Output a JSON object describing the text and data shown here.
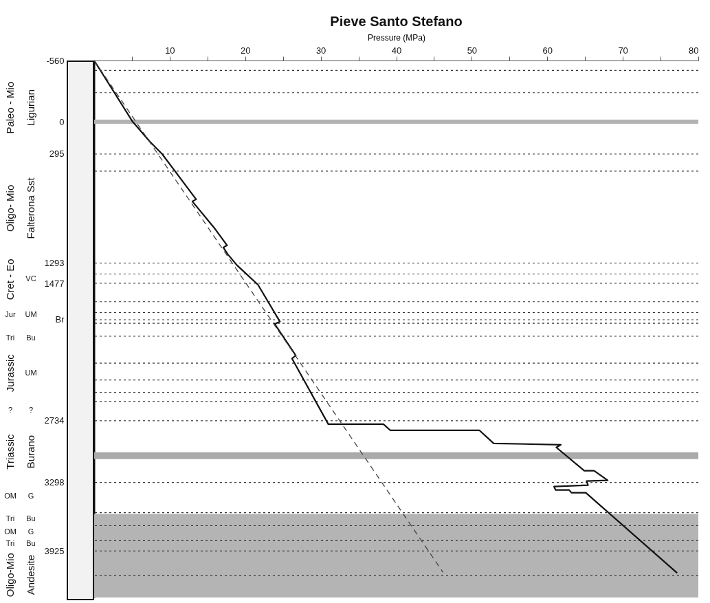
{
  "chart_data": {
    "type": "line",
    "title": "Pieve Santo Stefano",
    "xlabel": "Pressure (MPa)",
    "xlim": [
      0,
      80
    ],
    "xticks": [
      {
        "value": 5,
        "label": null
      },
      10,
      {
        "value": 15,
        "label": null
      },
      20,
      {
        "value": 25,
        "label": null
      },
      30,
      {
        "value": 35,
        "label": null
      },
      40,
      {
        "value": 45,
        "label": null
      },
      50,
      {
        "value": 55,
        "label": null
      },
      60,
      {
        "value": 65,
        "label": null
      },
      70,
      {
        "value": 75,
        "label": null
      },
      80
    ],
    "ylim": [
      4350,
      -560
    ],
    "yticks": [
      -560,
      0,
      295,
      1293,
      1477,
      {
        "value": 1810,
        "label": "Br"
      },
      2734,
      3298,
      3925
    ],
    "series": [
      {
        "color": "#111111",
        "line_style": "solid",
        "x": [
          0,
          5.1,
          7.4,
          9.0,
          13.5,
          13.0,
          16.0,
          17.6,
          17.1,
          17.7,
          18.9,
          21.7,
          24.6,
          23.9,
          26.7,
          26.2,
          31.0,
          38.3,
          39.2,
          51.0,
          52.9,
          61.8,
          61.2,
          64.9,
          66.2,
          68.0,
          65.2,
          65.4,
          60.9,
          61.1,
          62.9,
          63.2,
          65.1,
          77.2
        ],
        "values": [
          -560,
          0,
          184,
          295,
          709,
          728,
          979,
          1130,
          1149,
          1212,
          1311,
          1491,
          1828,
          1849,
          2137,
          2165,
          2765,
          2765,
          2821,
          2821,
          2941,
          2953,
          2978,
          3191,
          3191,
          3279,
          3285,
          3323,
          3336,
          3367,
          3367,
          3392,
          3392,
          4126
        ]
      },
      {
        "color": "#444444",
        "line_style": "dashed",
        "x": [
          0,
          46.2
        ],
        "values": [
          -560,
          4120
        ]
      }
    ],
    "ref_lines": [
      {
        "axis": "y",
        "value": 0,
        "color": "#b3b3b3",
        "line_style": "solid"
      },
      {
        "axis": "y",
        "value": -469,
        "color": "#333333",
        "line_style": "dotted"
      },
      {
        "axis": "y",
        "value": -266,
        "color": "#333333",
        "line_style": "dotted"
      },
      {
        "axis": "y",
        "value": 295,
        "color": "#333333",
        "line_style": "dotted"
      },
      {
        "axis": "y",
        "value": 452,
        "color": "#333333",
        "line_style": "dotted"
      },
      {
        "axis": "y",
        "value": 1293,
        "color": "#333333",
        "line_style": "dotted"
      },
      {
        "axis": "y",
        "value": 1392,
        "color": "#333333",
        "line_style": "dotted"
      },
      {
        "axis": "y",
        "value": 1477,
        "color": "#333333",
        "line_style": "dotted"
      },
      {
        "axis": "y",
        "value": 1645,
        "color": "#333333",
        "line_style": "dotted"
      },
      {
        "axis": "y",
        "value": 1744,
        "color": "#333333",
        "line_style": "dotted"
      },
      {
        "axis": "y",
        "value": 1810,
        "color": "#333333",
        "line_style": "dotted"
      },
      {
        "axis": "y",
        "value": 1842,
        "color": "#333333",
        "line_style": "dotted"
      },
      {
        "axis": "y",
        "value": 1961,
        "color": "#333333",
        "line_style": "dotted"
      },
      {
        "axis": "y",
        "value": 2207,
        "color": "#333333",
        "line_style": "dotted"
      },
      {
        "axis": "y",
        "value": 2361,
        "color": "#333333",
        "line_style": "dotted"
      },
      {
        "axis": "y",
        "value": 2474,
        "color": "#333333",
        "line_style": "dotted"
      },
      {
        "axis": "y",
        "value": 2558,
        "color": "#333333",
        "line_style": "dotted"
      },
      {
        "axis": "y",
        "value": 2734,
        "color": "#333333",
        "line_style": "dotted"
      },
      {
        "axis": "y",
        "value": 3298,
        "color": "#333333",
        "line_style": "dotted"
      },
      {
        "axis": "y",
        "value": 3574,
        "color": "#333333",
        "line_style": "dotted"
      },
      {
        "axis": "y",
        "value": 3693,
        "color": "#333333",
        "line_style": "dotted"
      },
      {
        "axis": "y",
        "value": 3831,
        "color": "#333333",
        "line_style": "dotted"
      },
      {
        "axis": "y",
        "value": 3925,
        "color": "#333333",
        "line_style": "dotted"
      },
      {
        "axis": "y",
        "value": 4151,
        "color": "#333333",
        "line_style": "dotted"
      }
    ],
    "bands": [
      {
        "axis": "y",
        "from": 3022,
        "to": 3085,
        "color": "#aaaaaa"
      },
      {
        "axis": "y",
        "from": 3586,
        "to": 4350,
        "color": "#b4b4b4"
      }
    ],
    "annotations": [
      "Paleo - Mio",
      "Oligo- Mio",
      "Cret - Eo",
      "Jur",
      "Tri",
      "Jurassic",
      "?",
      "Triassic",
      "OM",
      "Tri",
      "OM",
      "Tri",
      "Oligo-Mio",
      "Ligurian",
      "Falterona Sst",
      "VC",
      "UM",
      "Bu",
      "UM",
      "?",
      "Burano",
      "G",
      "Bu",
      "G",
      "Bu",
      "Andesite"
    ]
  }
}
